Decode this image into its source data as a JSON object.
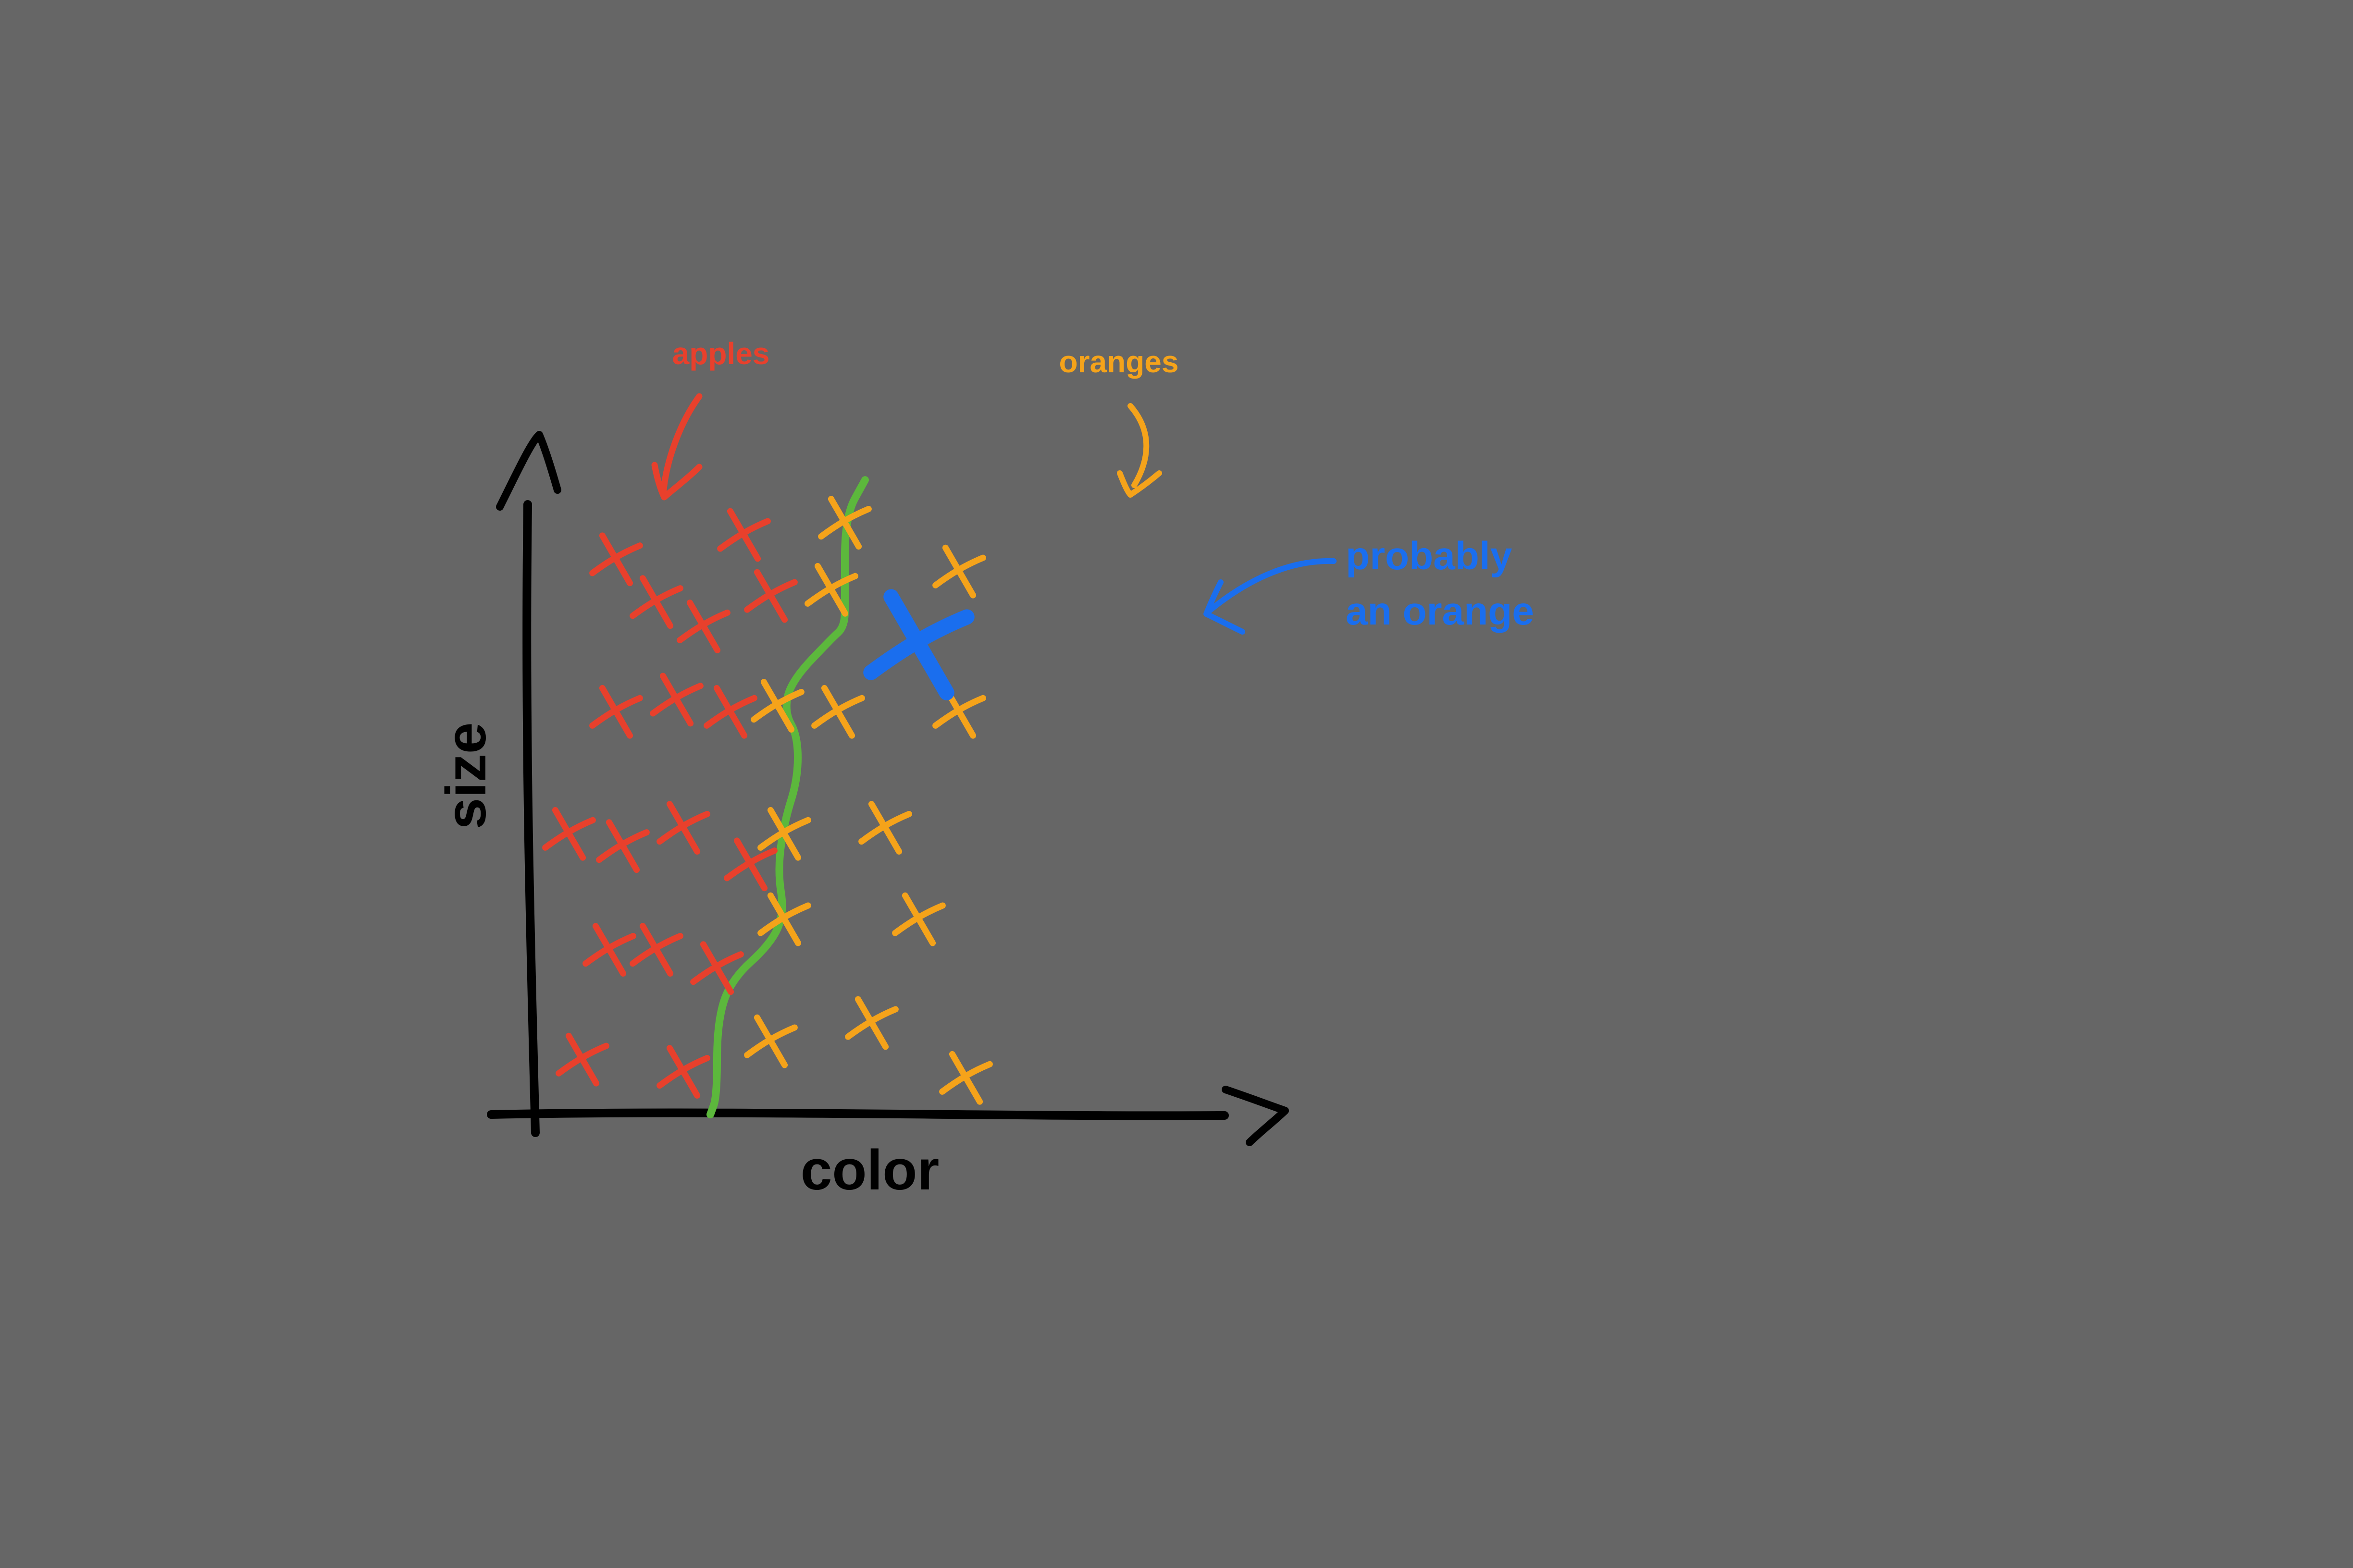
{
  "chart_data": {
    "type": "scatter",
    "title": "",
    "xlabel": "color",
    "ylabel": "size",
    "grid": false,
    "legend": "none",
    "xlim": [
      0,
      1
    ],
    "ylim": [
      0,
      1
    ],
    "series": [
      {
        "name": "apples",
        "color": "#e8402c",
        "marker": "x",
        "points": [
          [
            0.13,
            0.91
          ],
          [
            0.19,
            0.84
          ],
          [
            0.32,
            0.95
          ],
          [
            0.36,
            0.85
          ],
          [
            0.26,
            0.8
          ],
          [
            0.13,
            0.66
          ],
          [
            0.22,
            0.68
          ],
          [
            0.3,
            0.66
          ],
          [
            0.06,
            0.46
          ],
          [
            0.14,
            0.44
          ],
          [
            0.23,
            0.47
          ],
          [
            0.33,
            0.41
          ],
          [
            0.12,
            0.27
          ],
          [
            0.19,
            0.27
          ],
          [
            0.28,
            0.24
          ],
          [
            0.08,
            0.09
          ],
          [
            0.23,
            0.07
          ]
        ]
      },
      {
        "name": "oranges",
        "color": "#f5a31a",
        "marker": "x",
        "points": [
          [
            0.47,
            0.97
          ],
          [
            0.64,
            0.89
          ],
          [
            0.45,
            0.86
          ],
          [
            0.37,
            0.67
          ],
          [
            0.46,
            0.66
          ],
          [
            0.64,
            0.66
          ],
          [
            0.53,
            0.47
          ],
          [
            0.38,
            0.46
          ],
          [
            0.38,
            0.32
          ],
          [
            0.58,
            0.32
          ],
          [
            0.36,
            0.12
          ],
          [
            0.51,
            0.15
          ],
          [
            0.65,
            0.06
          ]
        ]
      }
    ],
    "query_point": {
      "x": 0.58,
      "y": 0.77,
      "color": "#1a6eee"
    },
    "decision_boundary": {
      "color": "#5cb83c",
      "points": [
        [
          0.27,
          0.0
        ],
        [
          0.28,
          0.03
        ],
        [
          0.28,
          0.15
        ],
        [
          0.3,
          0.22
        ],
        [
          0.36,
          0.28
        ],
        [
          0.38,
          0.33
        ],
        [
          0.37,
          0.4
        ],
        [
          0.38,
          0.48
        ],
        [
          0.4,
          0.55
        ],
        [
          0.4,
          0.62
        ],
        [
          0.38,
          0.66
        ],
        [
          0.39,
          0.71
        ],
        [
          0.45,
          0.78
        ],
        [
          0.47,
          0.8
        ],
        [
          0.47,
          0.85
        ],
        [
          0.47,
          0.98
        ],
        [
          0.5,
          1.04
        ]
      ]
    },
    "annotations": [
      {
        "text": "apples",
        "color": "#e8402c"
      },
      {
        "text": "oranges",
        "color": "#f5a31a"
      },
      {
        "lines": [
          "probably",
          "an orange"
        ],
        "color": "#1a6eee"
      }
    ]
  },
  "colors": {
    "background": "#666666",
    "axis": "#000000"
  }
}
